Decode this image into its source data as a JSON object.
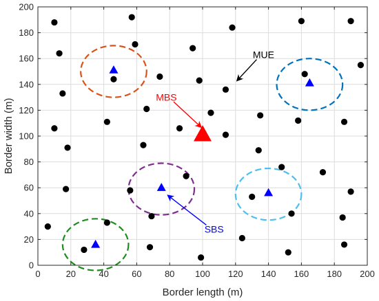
{
  "chart_data": {
    "type": "scatter",
    "xlabel": "Border length (m)",
    "ylabel": "Border width (m)",
    "xlim": [
      0,
      200
    ],
    "ylim": [
      0,
      200
    ],
    "xticks": [
      "0",
      "20",
      "40",
      "60",
      "80",
      "100",
      "120",
      "140",
      "160",
      "180",
      "200"
    ],
    "yticks": [
      "0",
      "20",
      "40",
      "60",
      "80",
      "100",
      "120",
      "140",
      "160",
      "180",
      "200"
    ],
    "grid": true,
    "mue_points": [
      [
        10,
        188
      ],
      [
        57,
        192
      ],
      [
        118,
        184
      ],
      [
        160,
        189
      ],
      [
        190,
        189
      ],
      [
        13,
        164
      ],
      [
        59,
        171
      ],
      [
        94,
        168
      ],
      [
        196,
        155
      ],
      [
        46,
        144
      ],
      [
        74,
        146
      ],
      [
        98,
        143
      ],
      [
        114,
        136
      ],
      [
        162,
        148
      ],
      [
        15,
        133
      ],
      [
        66,
        121
      ],
      [
        105,
        118
      ],
      [
        135,
        116
      ],
      [
        10,
        106
      ],
      [
        42,
        111
      ],
      [
        86,
        106
      ],
      [
        114,
        101
      ],
      [
        158,
        112
      ],
      [
        186,
        111
      ],
      [
        18,
        91
      ],
      [
        64,
        93
      ],
      [
        134,
        89
      ],
      [
        17,
        59
      ],
      [
        56,
        58
      ],
      [
        90,
        69
      ],
      [
        148,
        76
      ],
      [
        173,
        72
      ],
      [
        190,
        57
      ],
      [
        6,
        30
      ],
      [
        42,
        33
      ],
      [
        69,
        38
      ],
      [
        130,
        53
      ],
      [
        154,
        40
      ],
      [
        185,
        37
      ],
      [
        28,
        12
      ],
      [
        68,
        14
      ],
      [
        99,
        6
      ],
      [
        124,
        21
      ],
      [
        152,
        10
      ],
      [
        186,
        16
      ]
    ],
    "sbs_points": [
      [
        46,
        151
      ],
      [
        165,
        141
      ],
      [
        75,
        60
      ],
      [
        140,
        56
      ],
      [
        35,
        16
      ]
    ],
    "mbs_point": [
      100,
      101
    ],
    "sbs_circles": [
      {
        "cx": 46,
        "cy": 150,
        "r": 20,
        "color": "#D95319"
      },
      {
        "cx": 165,
        "cy": 140,
        "r": 20,
        "color": "#0072BD"
      },
      {
        "cx": 75,
        "cy": 59,
        "r": 20,
        "color": "#7E2F8E"
      },
      {
        "cx": 140,
        "cy": 55,
        "r": 20,
        "color": "#4DBEEE"
      },
      {
        "cx": 35,
        "cy": 16,
        "r": 20,
        "color": "#1C8C1C"
      }
    ],
    "annotations": [
      {
        "label": "MUE",
        "text_at": [
          137,
          163
        ],
        "arrow_to": [
          121,
          143
        ],
        "color": "#000000"
      },
      {
        "label": "MBS",
        "text_at": [
          78,
          130
        ],
        "arrow_to": [
          99,
          107
        ],
        "color": "#FF0000"
      },
      {
        "label": "SBS",
        "text_at": [
          107,
          28
        ],
        "arrow_to": [
          79,
          54
        ],
        "color": "#0000FF"
      }
    ],
    "colors": {
      "mue": "#000000",
      "sbs": "#0000FF",
      "mbs": "#FF0000",
      "grid": "#DCDCDC",
      "axis": "#262626"
    }
  }
}
